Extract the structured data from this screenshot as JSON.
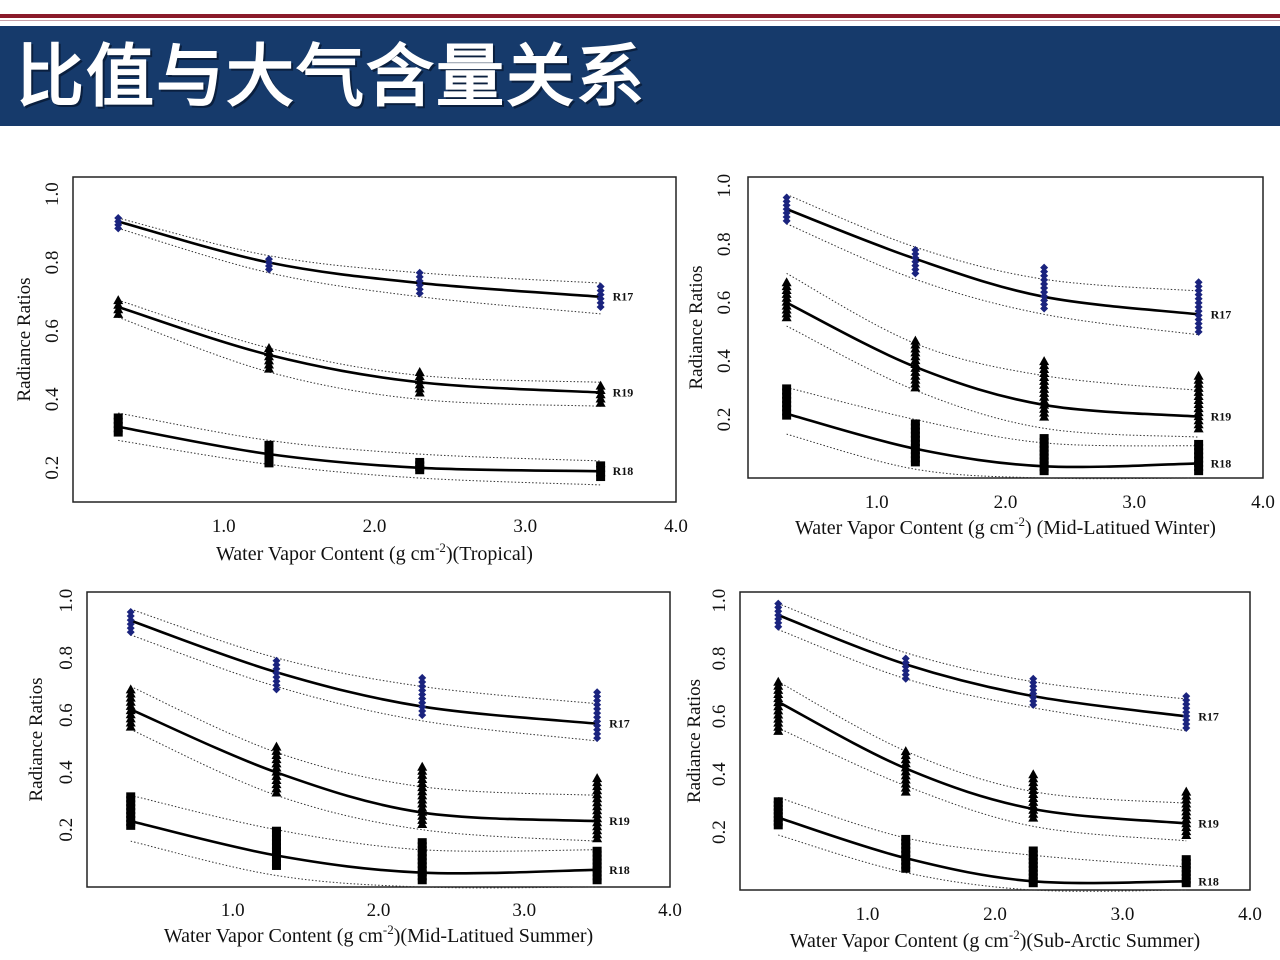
{
  "header": {
    "title": "比值与大气含量关系"
  },
  "colors": {
    "header_bg": "#163a6b",
    "accent_line": "#8a1a2a",
    "R17_marker": "#1a237e",
    "marker": "#000000"
  },
  "chart_data": [
    {
      "type": "scatter",
      "xlabel_pre": "Water Vapor Content (g cm",
      "xlabel_sup": "-2",
      "xlabel_post": ")(Tropical)",
      "ylabel": "Radiance Ratios",
      "xlim": [
        0,
        4.0
      ],
      "ylim": [
        0.1,
        1.05
      ],
      "xticks": [
        1.0,
        2.0,
        3.0,
        4.0
      ],
      "xtick_labels": [
        "1.0",
        "2.0",
        "3.0",
        "4.0"
      ],
      "yticks": [
        0.2,
        0.4,
        0.6,
        0.8,
        1.0
      ],
      "ytick_labels": [
        "0.2",
        "0.4",
        "0.6",
        "0.8",
        "1.0"
      ],
      "x": [
        0.3,
        1.3,
        2.3,
        3.5
      ],
      "series": [
        {
          "name": "R17",
          "marker": "diamond",
          "fit": [
            0.92,
            0.8,
            0.74,
            0.7
          ],
          "upper": [
            0.93,
            0.82,
            0.77,
            0.74
          ],
          "lower": [
            0.9,
            0.77,
            0.7,
            0.65
          ],
          "points_min": [
            0.9,
            0.78,
            0.71,
            0.67
          ],
          "points_max": [
            0.93,
            0.81,
            0.77,
            0.73
          ]
        },
        {
          "name": "R19",
          "marker": "triangle",
          "fit": [
            0.67,
            0.53,
            0.45,
            0.42
          ],
          "upper": [
            0.69,
            0.55,
            0.47,
            0.45
          ],
          "lower": [
            0.64,
            0.48,
            0.4,
            0.38
          ],
          "points_min": [
            0.65,
            0.49,
            0.42,
            0.39
          ],
          "points_max": [
            0.69,
            0.55,
            0.48,
            0.44
          ]
        },
        {
          "name": "R18",
          "marker": "square",
          "fit": [
            0.32,
            0.24,
            0.2,
            0.19
          ],
          "upper": [
            0.36,
            0.28,
            0.24,
            0.22
          ],
          "lower": [
            0.28,
            0.21,
            0.17,
            0.15
          ],
          "points_min": [
            0.3,
            0.21,
            0.19,
            0.17
          ],
          "points_max": [
            0.35,
            0.27,
            0.22,
            0.21
          ]
        }
      ]
    },
    {
      "type": "scatter",
      "xlabel_pre": "Water Vapor Content (g cm",
      "xlabel_sup": "-2",
      "xlabel_post": ") (Mid-Latitued Winter)",
      "ylabel": "Radiance Ratios",
      "xlim": [
        0,
        4.0
      ],
      "ylim": [
        0.0,
        1.03
      ],
      "xticks": [
        1.0,
        2.0,
        3.0,
        4.0
      ],
      "xtick_labels": [
        "1.0",
        "2.0",
        "3.0",
        "4.0"
      ],
      "yticks": [
        0.2,
        0.4,
        0.6,
        0.8,
        1.0
      ],
      "ytick_labels": [
        "0.2",
        "0.4",
        "0.6",
        "0.8",
        "1.0"
      ],
      "x": [
        0.3,
        1.3,
        2.3,
        3.5
      ],
      "series": [
        {
          "name": "R17",
          "marker": "diamond",
          "fit": [
            0.92,
            0.75,
            0.62,
            0.56
          ],
          "upper": [
            0.97,
            0.79,
            0.68,
            0.64
          ],
          "lower": [
            0.87,
            0.68,
            0.56,
            0.49
          ],
          "points_min": [
            0.88,
            0.7,
            0.58,
            0.5
          ],
          "points_max": [
            0.96,
            0.78,
            0.72,
            0.67
          ]
        },
        {
          "name": "R19",
          "marker": "triangle",
          "fit": [
            0.6,
            0.38,
            0.25,
            0.21
          ],
          "upper": [
            0.7,
            0.46,
            0.35,
            0.3
          ],
          "lower": [
            0.52,
            0.3,
            0.17,
            0.14
          ],
          "points_min": [
            0.55,
            0.31,
            0.21,
            0.17
          ],
          "points_max": [
            0.67,
            0.47,
            0.4,
            0.35
          ]
        },
        {
          "name": "R18",
          "marker": "square",
          "fit": [
            0.22,
            0.1,
            0.04,
            0.05
          ],
          "upper": [
            0.31,
            0.2,
            0.12,
            0.11
          ],
          "lower": [
            0.15,
            0.03,
            0.0,
            0.0
          ],
          "points_min": [
            0.21,
            0.05,
            0.02,
            0.02
          ],
          "points_max": [
            0.31,
            0.19,
            0.14,
            0.12
          ]
        }
      ]
    },
    {
      "type": "scatter",
      "xlabel_pre": "Water Vapor Content (g cm",
      "xlabel_sup": "-2",
      "xlabel_post": ")(Mid-Latitued Summer)",
      "ylabel": "Radiance Ratios",
      "xlim": [
        0,
        4.0
      ],
      "ylim": [
        0.0,
        1.03
      ],
      "xticks": [
        1.0,
        2.0,
        3.0,
        4.0
      ],
      "xtick_labels": [
        "1.0",
        "2.0",
        "3.0",
        "4.0"
      ],
      "yticks": [
        0.2,
        0.4,
        0.6,
        0.8,
        1.0
      ],
      "ytick_labels": [
        "0.2",
        "0.4",
        "0.6",
        "0.8",
        "1.0"
      ],
      "x": [
        0.3,
        1.3,
        2.3,
        3.5
      ],
      "series": [
        {
          "name": "R17",
          "marker": "diamond",
          "fit": [
            0.93,
            0.75,
            0.63,
            0.57
          ],
          "upper": [
            0.97,
            0.8,
            0.7,
            0.64
          ],
          "lower": [
            0.88,
            0.7,
            0.58,
            0.51
          ],
          "points_min": [
            0.89,
            0.69,
            0.6,
            0.52
          ],
          "points_max": [
            0.96,
            0.79,
            0.73,
            0.68
          ]
        },
        {
          "name": "R19",
          "marker": "triangle",
          "fit": [
            0.62,
            0.4,
            0.26,
            0.23
          ],
          "upper": [
            0.7,
            0.47,
            0.35,
            0.32
          ],
          "lower": [
            0.55,
            0.32,
            0.2,
            0.16
          ],
          "points_min": [
            0.56,
            0.33,
            0.22,
            0.17
          ],
          "points_max": [
            0.69,
            0.49,
            0.42,
            0.38
          ]
        },
        {
          "name": "R18",
          "marker": "square",
          "fit": [
            0.23,
            0.11,
            0.05,
            0.06
          ],
          "upper": [
            0.32,
            0.2,
            0.13,
            0.13
          ],
          "lower": [
            0.16,
            0.04,
            0.0,
            0.0
          ],
          "points_min": [
            0.21,
            0.07,
            0.02,
            0.02
          ],
          "points_max": [
            0.32,
            0.2,
            0.16,
            0.13
          ]
        }
      ]
    },
    {
      "type": "scatter",
      "xlabel_pre": "Water Vapor Content (g cm",
      "xlabel_sup": "-2",
      "xlabel_post": ")(Sub-Arctic Summer)",
      "ylabel": "Radiance Ratios",
      "xlim": [
        0,
        4.0
      ],
      "ylim": [
        0.0,
        1.03
      ],
      "xticks": [
        1.0,
        2.0,
        3.0,
        4.0
      ],
      "xtick_labels": [
        "1.0",
        "2.0",
        "3.0",
        "4.0"
      ],
      "yticks": [
        0.2,
        0.4,
        0.6,
        0.8,
        1.0
      ],
      "ytick_labels": [
        "0.2",
        "0.4",
        "0.6",
        "0.8",
        "1.0"
      ],
      "x": [
        0.3,
        1.3,
        2.3,
        3.5
      ],
      "series": [
        {
          "name": "R17",
          "marker": "diamond",
          "fit": [
            0.95,
            0.78,
            0.67,
            0.6
          ],
          "upper": [
            0.99,
            0.82,
            0.72,
            0.66
          ],
          "lower": [
            0.9,
            0.73,
            0.63,
            0.55
          ],
          "points_min": [
            0.91,
            0.73,
            0.64,
            0.56
          ],
          "points_max": [
            0.99,
            0.8,
            0.73,
            0.67
          ]
        },
        {
          "name": "R19",
          "marker": "triangle",
          "fit": [
            0.65,
            0.42,
            0.28,
            0.23
          ],
          "upper": [
            0.72,
            0.48,
            0.34,
            0.3
          ],
          "lower": [
            0.56,
            0.36,
            0.22,
            0.17
          ],
          "points_min": [
            0.55,
            0.34,
            0.25,
            0.19
          ],
          "points_max": [
            0.72,
            0.48,
            0.4,
            0.34
          ]
        },
        {
          "name": "R18",
          "marker": "square",
          "fit": [
            0.25,
            0.11,
            0.03,
            0.03
          ],
          "upper": [
            0.32,
            0.18,
            0.12,
            0.08
          ],
          "lower": [
            0.19,
            0.06,
            0.0,
            0.0
          ],
          "points_min": [
            0.22,
            0.07,
            0.02,
            0.02
          ],
          "points_max": [
            0.31,
            0.18,
            0.14,
            0.11
          ]
        }
      ]
    }
  ]
}
